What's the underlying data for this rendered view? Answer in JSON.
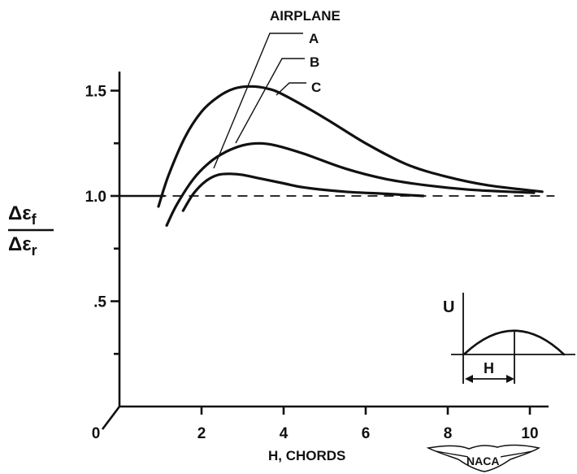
{
  "chart_data": {
    "type": "line",
    "xlabel": "H, CHORDS",
    "ylabel_numerator": "Δε",
    "ylabel_numerator_sub": "f",
    "ylabel_denominator": "Δε",
    "ylabel_denominator_sub": "r",
    "xlim": [
      0,
      10.6
    ],
    "ylim": [
      0,
      1.8
    ],
    "x_ticks": [
      {
        "value": 0,
        "label": "0"
      },
      {
        "value": 2,
        "label": "2"
      },
      {
        "value": 4,
        "label": "4"
      },
      {
        "value": 6,
        "label": "6"
      },
      {
        "value": 8,
        "label": "8"
      },
      {
        "value": 10,
        "label": "10"
      }
    ],
    "y_ticks": [
      {
        "value": 0.5,
        "label": ".5"
      },
      {
        "value": 1.0,
        "label": "1.0"
      },
      {
        "value": 1.5,
        "label": "1.5"
      }
    ],
    "reference_line": {
      "y": 1.0,
      "style": "dashed",
      "x_range": [
        0.9,
        10.6
      ]
    },
    "legend_title": "AIRPLANE",
    "series": [
      {
        "name": "A",
        "x": [
          0.95,
          1.2,
          1.6,
          2.0,
          2.4,
          2.8,
          3.2,
          3.6,
          4.0,
          5.0,
          6.0,
          7.0,
          8.0,
          9.0,
          10.3
        ],
        "y": [
          0.95,
          1.1,
          1.28,
          1.4,
          1.47,
          1.51,
          1.52,
          1.51,
          1.48,
          1.37,
          1.25,
          1.15,
          1.09,
          1.05,
          1.02
        ]
      },
      {
        "name": "B",
        "x": [
          1.15,
          1.4,
          1.8,
          2.2,
          2.6,
          3.0,
          3.4,
          3.8,
          4.5,
          5.5,
          6.5,
          7.5,
          8.5,
          9.5,
          10.1
        ],
        "y": [
          0.86,
          0.96,
          1.08,
          1.16,
          1.21,
          1.24,
          1.25,
          1.24,
          1.2,
          1.13,
          1.08,
          1.05,
          1.03,
          1.02,
          1.015
        ]
      },
      {
        "name": "C",
        "x": [
          1.55,
          1.8,
          2.1,
          2.4,
          2.7,
          3.0,
          3.5,
          4.0,
          4.5,
          5.5,
          6.5,
          7.4
        ],
        "y": [
          0.93,
          1.01,
          1.07,
          1.1,
          1.105,
          1.1,
          1.08,
          1.06,
          1.04,
          1.02,
          1.01,
          1.0
        ]
      }
    ],
    "inset": {
      "ylabel": "U",
      "dimension_label": "H"
    },
    "logo": {
      "text": "NACA"
    }
  }
}
